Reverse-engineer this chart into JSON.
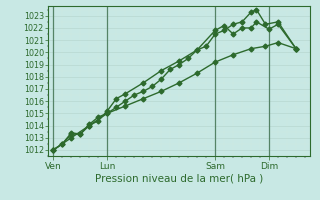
{
  "xlabel": "Pression niveau de la mer( hPa )",
  "bg_color": "#c8e8e4",
  "grid_major_color": "#b8d8d0",
  "grid_minor_color": "#d0e8e0",
  "line_color": "#2d6a2d",
  "vline_color": "#4a7a5a",
  "ylim": [
    1011.5,
    1023.8
  ],
  "yticks": [
    1012,
    1013,
    1014,
    1015,
    1016,
    1017,
    1018,
    1019,
    1020,
    1021,
    1022,
    1023
  ],
  "xtick_positions": [
    0,
    3,
    9,
    12
  ],
  "xtick_labels": [
    "Ven",
    "Lun",
    "Sam",
    "Dim"
  ],
  "xlim": [
    -0.3,
    14.3
  ],
  "vlines": [
    0,
    3,
    9,
    12
  ],
  "line1_x": [
    0,
    0.5,
    1.0,
    1.5,
    2.0,
    2.5,
    3.0,
    3.5,
    4.0,
    4.5,
    5.0,
    5.5,
    6.0,
    6.5,
    7.0,
    7.5,
    8.0,
    8.5,
    9.0,
    9.5,
    10.0,
    10.5,
    11.0,
    11.3,
    11.8,
    12.5,
    13.5
  ],
  "line1_y": [
    1012.0,
    1012.5,
    1013.4,
    1013.3,
    1014.1,
    1014.7,
    1015.0,
    1015.5,
    1016.0,
    1016.5,
    1016.8,
    1017.2,
    1017.8,
    1018.6,
    1019.0,
    1019.5,
    1020.2,
    1020.5,
    1021.5,
    1021.8,
    1022.3,
    1022.5,
    1023.3,
    1023.5,
    1022.3,
    1022.5,
    1020.3
  ],
  "line2_x": [
    0,
    0.5,
    1.0,
    1.5,
    2.0,
    2.5,
    3.0,
    3.5,
    4.0,
    5.0,
    6.0,
    7.0,
    8.0,
    9.0,
    9.5,
    10.0,
    10.5,
    11.0,
    11.3,
    12.0,
    12.5,
    13.5
  ],
  "line2_y": [
    1012.0,
    1012.5,
    1013.3,
    1013.3,
    1014.0,
    1014.4,
    1015.2,
    1016.2,
    1016.6,
    1017.5,
    1018.5,
    1019.3,
    1020.2,
    1021.8,
    1022.2,
    1021.5,
    1022.0,
    1022.0,
    1022.5,
    1021.9,
    1022.3,
    1020.3
  ],
  "line3_x": [
    0,
    1.0,
    2.0,
    3.0,
    4.0,
    5.0,
    6.0,
    7.0,
    8.0,
    9.0,
    10.0,
    11.0,
    11.8,
    12.5,
    13.5
  ],
  "line3_y": [
    1012.0,
    1013.0,
    1014.0,
    1015.0,
    1015.6,
    1016.2,
    1016.8,
    1017.5,
    1018.3,
    1019.2,
    1019.8,
    1020.3,
    1020.5,
    1020.8,
    1020.3
  ],
  "marker": "D",
  "markersize": 2.5,
  "linewidth": 1.0
}
